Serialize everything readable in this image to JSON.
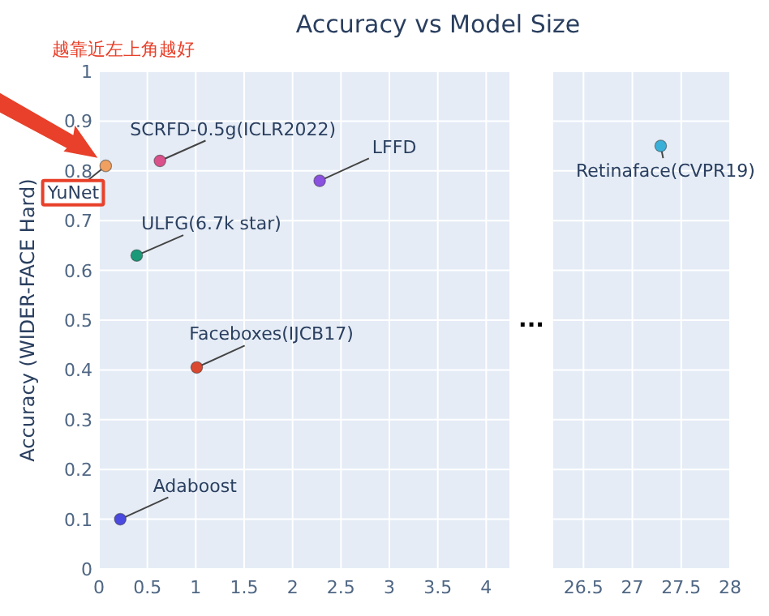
{
  "chart_data": [
    {
      "type": "scatter",
      "title": "Accuracy vs Model Size",
      "ylabel": "Accuracy (WIDER-FACE Hard)",
      "annotations": [
        "越靠近左上角越好",
        "..."
      ],
      "marker": "circle",
      "grid": true,
      "xlim": [
        0,
        4.24
      ],
      "xticks": [
        0,
        0.5,
        1,
        1.5,
        2,
        2.5,
        3,
        3.5,
        4
      ],
      "ylim": [
        0,
        1
      ],
      "yticks": [
        0,
        0.1,
        0.2,
        0.3,
        0.4,
        0.5,
        0.6,
        0.7,
        0.8,
        0.9,
        1
      ],
      "series": [
        {
          "name": "YuNet",
          "color": "#f0a060",
          "x": [
            0.07
          ],
          "values": [
            0.81
          ]
        },
        {
          "name": "SCRFD-0.5g(ICLR2022)",
          "color": "#d9508a",
          "x": [
            0.63
          ],
          "values": [
            0.82
          ]
        },
        {
          "name": "LFFD",
          "color": "#8a50e0",
          "x": [
            2.28
          ],
          "values": [
            0.78
          ]
        },
        {
          "name": "ULFG(6.7k star)",
          "color": "#1a9a78",
          "x": [
            0.39
          ],
          "values": [
            0.63
          ]
        },
        {
          "name": "Faceboxes(IJCB17)",
          "color": "#d9482f",
          "x": [
            1.01
          ],
          "values": [
            0.405
          ]
        },
        {
          "name": "Adaboost",
          "color": "#4a4ae0",
          "x": [
            0.22
          ],
          "values": [
            0.1
          ]
        }
      ]
    },
    {
      "type": "scatter",
      "marker": "circle",
      "grid": true,
      "tick_labels": "x",
      "xlim": [
        26.19,
        28
      ],
      "xticks": [
        26.5,
        27,
        27.5,
        28
      ],
      "ylim": [
        0,
        1
      ],
      "yticks": [
        0,
        0.1,
        0.2,
        0.3,
        0.4,
        0.5,
        0.6,
        0.7,
        0.8,
        0.9,
        1
      ],
      "series": [
        {
          "name": "Retinaface(CVPR19)",
          "color": "#3ab0d8",
          "x": [
            27.29
          ],
          "values": [
            0.85
          ]
        }
      ]
    }
  ]
}
